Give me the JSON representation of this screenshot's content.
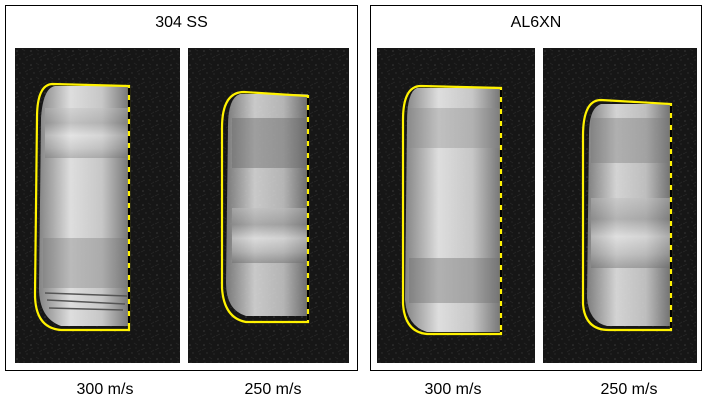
{
  "panels": [
    {
      "title": "304 SS"
    },
    {
      "title": "AL6XN"
    }
  ],
  "captions": [
    "300 m/s",
    "250 m/s",
    "300 m/s",
    "250 m/s"
  ],
  "colors": {
    "outline": "#FFF200",
    "background": "#141414",
    "frame": "#000000"
  }
}
